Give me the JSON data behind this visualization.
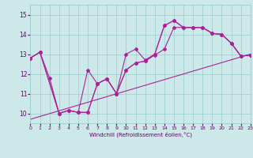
{
  "xlabel": "Windchill (Refroidissement éolien,°C)",
  "xlim": [
    0,
    23
  ],
  "ylim": [
    9.5,
    15.5
  ],
  "yticks": [
    10,
    11,
    12,
    13,
    14,
    15
  ],
  "xticks": [
    0,
    1,
    2,
    3,
    4,
    5,
    6,
    7,
    8,
    9,
    10,
    11,
    12,
    13,
    14,
    15,
    16,
    17,
    18,
    19,
    20,
    21,
    22,
    23
  ],
  "bg_color": "#cce8e8",
  "line_color": "#aa2299",
  "line1_x": [
    0,
    1,
    2,
    3,
    4,
    5,
    6,
    7,
    8,
    9,
    10,
    11,
    12,
    13,
    14,
    15,
    16,
    17,
    18,
    19,
    20,
    21,
    22,
    23
  ],
  "line1_y": [
    12.8,
    13.1,
    11.8,
    10.0,
    10.15,
    10.05,
    12.2,
    11.5,
    11.75,
    11.0,
    13.0,
    13.25,
    12.7,
    13.0,
    14.45,
    14.7,
    14.35,
    14.35,
    14.35,
    14.05,
    14.0,
    13.55,
    12.9,
    12.95
  ],
  "line2_x": [
    0,
    1,
    3,
    4,
    5,
    6,
    7,
    8,
    9,
    10,
    11,
    12,
    13,
    14,
    15,
    16,
    17,
    18,
    19,
    20,
    21,
    22,
    23
  ],
  "line2_y": [
    12.8,
    13.1,
    10.0,
    10.15,
    10.05,
    10.05,
    11.5,
    11.75,
    11.0,
    12.2,
    12.55,
    12.65,
    12.95,
    13.25,
    14.35,
    14.35,
    14.35,
    14.35,
    14.05,
    14.0,
    13.55,
    12.9,
    12.95
  ],
  "line3_x": [
    0,
    1,
    3,
    4,
    5,
    6,
    7,
    8,
    9,
    10,
    11,
    12,
    13,
    14,
    15,
    16,
    17,
    18,
    19,
    20,
    21,
    22,
    23
  ],
  "line3_y": [
    12.8,
    13.1,
    10.0,
    10.15,
    10.05,
    10.05,
    11.5,
    11.75,
    11.0,
    12.2,
    12.55,
    12.65,
    13.0,
    14.45,
    14.7,
    14.35,
    14.35,
    14.35,
    14.05,
    14.0,
    13.55,
    12.9,
    12.95
  ],
  "line4_x": [
    0,
    23
  ],
  "line4_y": [
    9.7,
    13.0
  ]
}
